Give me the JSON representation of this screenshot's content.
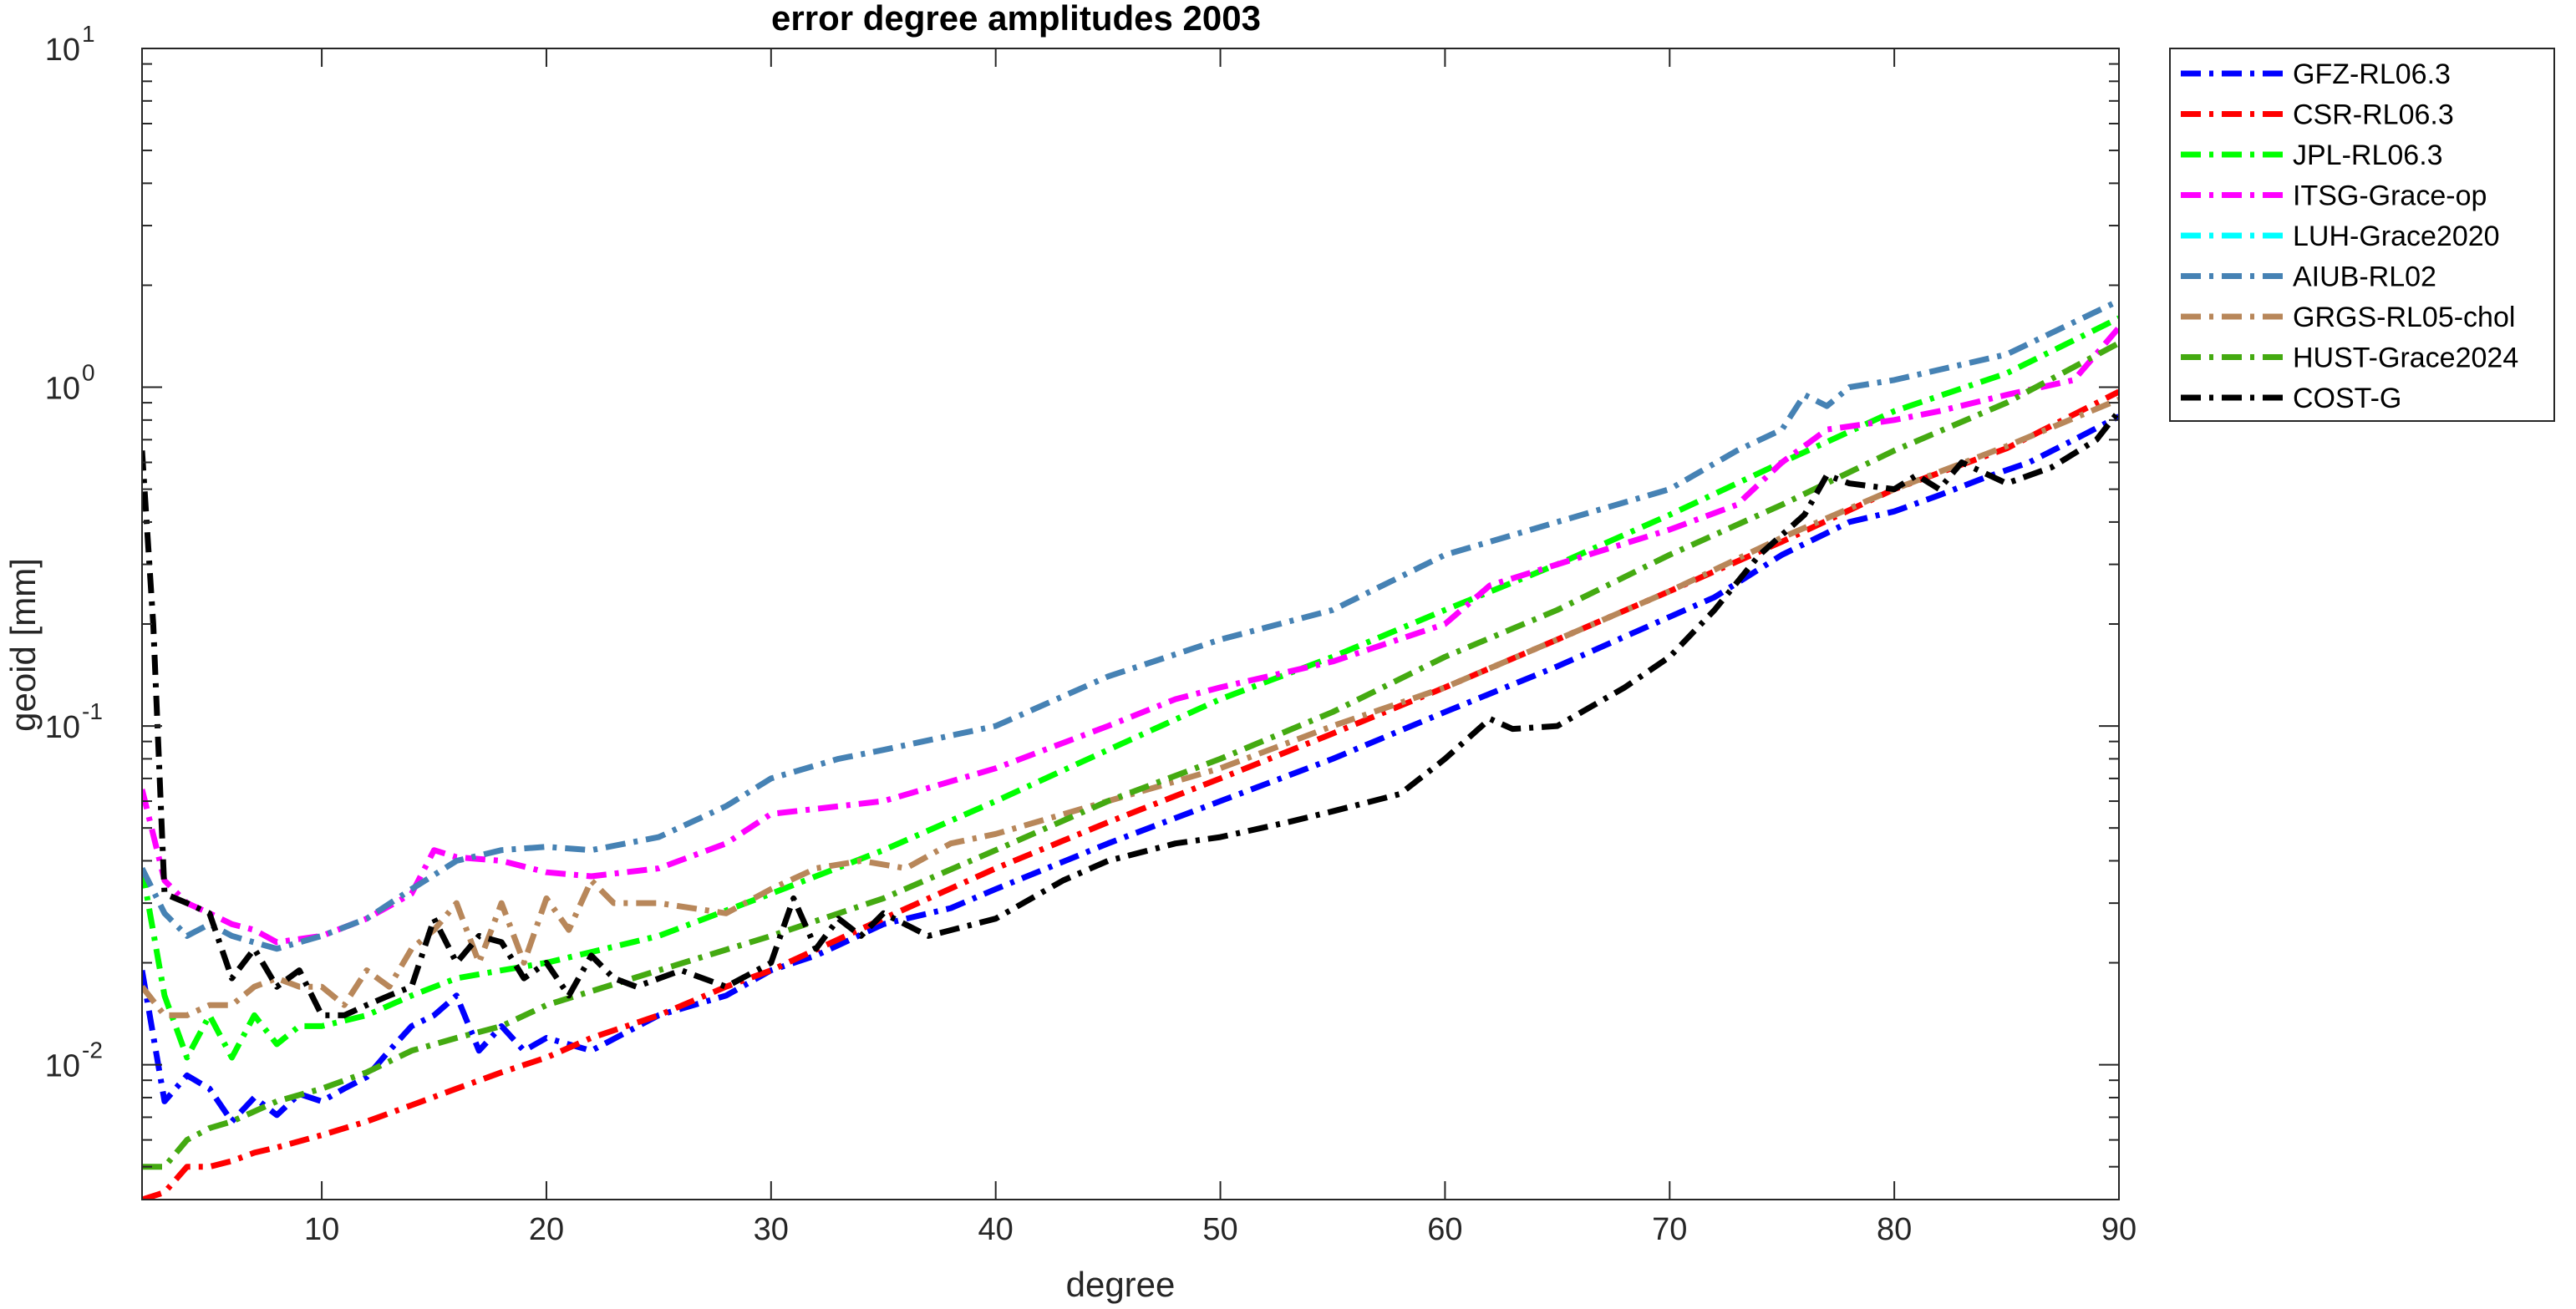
{
  "chart_data": {
    "type": "line",
    "title": "error degree amplitudes 2003",
    "xlabel": "degree",
    "ylabel": "geoid [mm]",
    "xlim": [
      2,
      90
    ],
    "ylim": [
      0.004,
      10
    ],
    "yscale": "log",
    "xticks": [
      10,
      20,
      30,
      40,
      50,
      60,
      70,
      80,
      90
    ],
    "yticks": [
      {
        "value": 10,
        "base": "10",
        "exp": "1"
      },
      {
        "value": 1,
        "base": "10",
        "exp": "0"
      },
      {
        "value": 0.1,
        "base": "10",
        "exp": "-1"
      },
      {
        "value": 0.01,
        "base": "10",
        "exp": "-2"
      }
    ],
    "grid": false,
    "legend_position": "outside-top-right",
    "series": [
      {
        "name": "GFZ-RL06.3",
        "color": "#0000ff",
        "points": [
          [
            2,
            0.019
          ],
          [
            3,
            0.0078
          ],
          [
            4,
            0.0093
          ],
          [
            5,
            0.0085
          ],
          [
            6,
            0.0068
          ],
          [
            7,
            0.008
          ],
          [
            8,
            0.0071
          ],
          [
            9,
            0.0082
          ],
          [
            10,
            0.0078
          ],
          [
            11,
            0.0085
          ],
          [
            12,
            0.0092
          ],
          [
            13,
            0.011
          ],
          [
            14,
            0.013
          ],
          [
            15,
            0.014
          ],
          [
            16,
            0.016
          ],
          [
            17,
            0.011
          ],
          [
            18,
            0.013
          ],
          [
            19,
            0.011
          ],
          [
            20,
            0.012
          ],
          [
            22,
            0.011
          ],
          [
            25,
            0.014
          ],
          [
            28,
            0.016
          ],
          [
            30,
            0.019
          ],
          [
            32,
            0.021
          ],
          [
            35,
            0.026
          ],
          [
            38,
            0.029
          ],
          [
            40,
            0.033
          ],
          [
            45,
            0.045
          ],
          [
            50,
            0.06
          ],
          [
            55,
            0.08
          ],
          [
            60,
            0.11
          ],
          [
            65,
            0.15
          ],
          [
            70,
            0.21
          ],
          [
            72,
            0.24
          ],
          [
            75,
            0.32
          ],
          [
            78,
            0.4
          ],
          [
            80,
            0.43
          ],
          [
            82,
            0.48
          ],
          [
            84,
            0.54
          ],
          [
            86,
            0.6
          ],
          [
            88,
            0.7
          ],
          [
            90,
            0.82
          ]
        ]
      },
      {
        "name": "CSR-RL06.3",
        "color": "#ff0000",
        "points": [
          [
            2,
            0.004
          ],
          [
            3,
            0.0042
          ],
          [
            4,
            0.005
          ],
          [
            5,
            0.005
          ],
          [
            6,
            0.0052
          ],
          [
            7,
            0.0055
          ],
          [
            8,
            0.0057
          ],
          [
            10,
            0.0062
          ],
          [
            12,
            0.0068
          ],
          [
            14,
            0.0076
          ],
          [
            16,
            0.0085
          ],
          [
            18,
            0.0095
          ],
          [
            20,
            0.0105
          ],
          [
            22,
            0.012
          ],
          [
            25,
            0.014
          ],
          [
            28,
            0.017
          ],
          [
            30,
            0.019
          ],
          [
            35,
            0.027
          ],
          [
            40,
            0.038
          ],
          [
            45,
            0.052
          ],
          [
            50,
            0.07
          ],
          [
            55,
            0.095
          ],
          [
            60,
            0.13
          ],
          [
            65,
            0.18
          ],
          [
            70,
            0.25
          ],
          [
            75,
            0.35
          ],
          [
            80,
            0.5
          ],
          [
            85,
            0.66
          ],
          [
            90,
            0.97
          ]
        ]
      },
      {
        "name": "JPL-RL06.3",
        "color": "#00ff00",
        "points": [
          [
            2,
            0.038
          ],
          [
            3,
            0.016
          ],
          [
            4,
            0.0105
          ],
          [
            5,
            0.014
          ],
          [
            6,
            0.0105
          ],
          [
            7,
            0.014
          ],
          [
            8,
            0.0115
          ],
          [
            9,
            0.013
          ],
          [
            10,
            0.013
          ],
          [
            12,
            0.014
          ],
          [
            14,
            0.016
          ],
          [
            16,
            0.018
          ],
          [
            18,
            0.019
          ],
          [
            20,
            0.02
          ],
          [
            25,
            0.024
          ],
          [
            30,
            0.032
          ],
          [
            35,
            0.043
          ],
          [
            40,
            0.06
          ],
          [
            45,
            0.085
          ],
          [
            50,
            0.12
          ],
          [
            55,
            0.16
          ],
          [
            60,
            0.22
          ],
          [
            65,
            0.3
          ],
          [
            70,
            0.42
          ],
          [
            75,
            0.6
          ],
          [
            80,
            0.85
          ],
          [
            85,
            1.1
          ],
          [
            90,
            1.6
          ]
        ]
      },
      {
        "name": "ITSG-Grace-op",
        "color": "#ff00ff",
        "points": [
          [
            2,
            0.065
          ],
          [
            3,
            0.035
          ],
          [
            4,
            0.03
          ],
          [
            5,
            0.028
          ],
          [
            6,
            0.026
          ],
          [
            7,
            0.025
          ],
          [
            8,
            0.023
          ],
          [
            10,
            0.024
          ],
          [
            12,
            0.027
          ],
          [
            14,
            0.032
          ],
          [
            15,
            0.043
          ],
          [
            16,
            0.041
          ],
          [
            18,
            0.04
          ],
          [
            20,
            0.037
          ],
          [
            22,
            0.036
          ],
          [
            25,
            0.038
          ],
          [
            28,
            0.045
          ],
          [
            30,
            0.055
          ],
          [
            35,
            0.06
          ],
          [
            40,
            0.075
          ],
          [
            45,
            0.1
          ],
          [
            48,
            0.12
          ],
          [
            50,
            0.13
          ],
          [
            55,
            0.155
          ],
          [
            60,
            0.2
          ],
          [
            62,
            0.26
          ],
          [
            65,
            0.3
          ],
          [
            70,
            0.38
          ],
          [
            73,
            0.45
          ],
          [
            75,
            0.6
          ],
          [
            77,
            0.75
          ],
          [
            80,
            0.8
          ],
          [
            82,
            0.85
          ],
          [
            85,
            0.95
          ],
          [
            88,
            1.05
          ],
          [
            90,
            1.5
          ]
        ]
      },
      {
        "name": "LUH-Grace2020",
        "color": "#00ffff",
        "points": []
      },
      {
        "name": "AIUB-RL02",
        "color": "#4682b4",
        "points": [
          [
            2,
            0.038
          ],
          [
            3,
            0.028
          ],
          [
            4,
            0.024
          ],
          [
            5,
            0.026
          ],
          [
            6,
            0.024
          ],
          [
            8,
            0.022
          ],
          [
            10,
            0.024
          ],
          [
            12,
            0.027
          ],
          [
            14,
            0.033
          ],
          [
            16,
            0.04
          ],
          [
            18,
            0.043
          ],
          [
            20,
            0.044
          ],
          [
            22,
            0.043
          ],
          [
            25,
            0.047
          ],
          [
            28,
            0.058
          ],
          [
            30,
            0.07
          ],
          [
            33,
            0.08
          ],
          [
            35,
            0.085
          ],
          [
            40,
            0.1
          ],
          [
            45,
            0.14
          ],
          [
            50,
            0.18
          ],
          [
            55,
            0.22
          ],
          [
            60,
            0.32
          ],
          [
            65,
            0.4
          ],
          [
            70,
            0.5
          ],
          [
            73,
            0.65
          ],
          [
            75,
            0.75
          ],
          [
            76,
            0.95
          ],
          [
            77,
            0.88
          ],
          [
            78,
            1.0
          ],
          [
            80,
            1.05
          ],
          [
            85,
            1.25
          ],
          [
            90,
            1.8
          ]
        ]
      },
      {
        "name": "GRGS-RL05-chol",
        "color": "#b8875a",
        "points": [
          [
            2,
            0.017
          ],
          [
            3,
            0.014
          ],
          [
            4,
            0.014
          ],
          [
            5,
            0.015
          ],
          [
            6,
            0.015
          ],
          [
            7,
            0.017
          ],
          [
            8,
            0.018
          ],
          [
            9,
            0.017
          ],
          [
            10,
            0.017
          ],
          [
            11,
            0.015
          ],
          [
            12,
            0.019
          ],
          [
            13,
            0.017
          ],
          [
            14,
            0.022
          ],
          [
            15,
            0.025
          ],
          [
            16,
            0.03
          ],
          [
            17,
            0.02
          ],
          [
            18,
            0.03
          ],
          [
            19,
            0.02
          ],
          [
            20,
            0.031
          ],
          [
            21,
            0.025
          ],
          [
            22,
            0.035
          ],
          [
            23,
            0.03
          ],
          [
            25,
            0.03
          ],
          [
            28,
            0.028
          ],
          [
            30,
            0.033
          ],
          [
            32,
            0.038
          ],
          [
            34,
            0.04
          ],
          [
            36,
            0.038
          ],
          [
            38,
            0.045
          ],
          [
            40,
            0.048
          ],
          [
            45,
            0.06
          ],
          [
            50,
            0.075
          ],
          [
            55,
            0.1
          ],
          [
            60,
            0.13
          ],
          [
            65,
            0.18
          ],
          [
            70,
            0.25
          ],
          [
            75,
            0.36
          ],
          [
            80,
            0.5
          ],
          [
            85,
            0.67
          ],
          [
            90,
            0.92
          ]
        ]
      },
      {
        "name": "HUST-Grace2024",
        "color": "#44aa11",
        "points": [
          [
            2,
            0.005
          ],
          [
            3,
            0.005
          ],
          [
            4,
            0.006
          ],
          [
            5,
            0.0065
          ],
          [
            6,
            0.0068
          ],
          [
            8,
            0.0078
          ],
          [
            10,
            0.0085
          ],
          [
            12,
            0.0095
          ],
          [
            14,
            0.011
          ],
          [
            16,
            0.012
          ],
          [
            18,
            0.013
          ],
          [
            20,
            0.015
          ],
          [
            25,
            0.019
          ],
          [
            30,
            0.024
          ],
          [
            35,
            0.031
          ],
          [
            40,
            0.043
          ],
          [
            45,
            0.06
          ],
          [
            50,
            0.08
          ],
          [
            55,
            0.11
          ],
          [
            60,
            0.16
          ],
          [
            65,
            0.22
          ],
          [
            70,
            0.32
          ],
          [
            75,
            0.45
          ],
          [
            80,
            0.65
          ],
          [
            85,
            0.9
          ],
          [
            90,
            1.35
          ]
        ]
      },
      {
        "name": "COST-G",
        "color": "#000000",
        "points": [
          [
            2,
            0.65
          ],
          [
            2.5,
            0.2
          ],
          [
            3,
            0.032
          ],
          [
            4,
            0.03
          ],
          [
            5,
            0.028
          ],
          [
            6,
            0.018
          ],
          [
            7,
            0.022
          ],
          [
            8,
            0.017
          ],
          [
            9,
            0.019
          ],
          [
            10,
            0.014
          ],
          [
            11,
            0.014
          ],
          [
            12,
            0.015
          ],
          [
            13,
            0.016
          ],
          [
            14,
            0.017
          ],
          [
            15,
            0.027
          ],
          [
            16,
            0.02
          ],
          [
            17,
            0.024
          ],
          [
            18,
            0.023
          ],
          [
            19,
            0.018
          ],
          [
            20,
            0.02
          ],
          [
            21,
            0.016
          ],
          [
            22,
            0.021
          ],
          [
            23,
            0.018
          ],
          [
            24,
            0.017
          ],
          [
            26,
            0.019
          ],
          [
            28,
            0.017
          ],
          [
            30,
            0.02
          ],
          [
            31,
            0.031
          ],
          [
            32,
            0.022
          ],
          [
            33,
            0.027
          ],
          [
            34,
            0.024
          ],
          [
            35,
            0.028
          ],
          [
            37,
            0.024
          ],
          [
            40,
            0.027
          ],
          [
            43,
            0.035
          ],
          [
            45,
            0.04
          ],
          [
            48,
            0.045
          ],
          [
            50,
            0.047
          ],
          [
            53,
            0.052
          ],
          [
            55,
            0.056
          ],
          [
            58,
            0.063
          ],
          [
            60,
            0.08
          ],
          [
            62,
            0.105
          ],
          [
            63,
            0.098
          ],
          [
            65,
            0.1
          ],
          [
            68,
            0.13
          ],
          [
            70,
            0.16
          ],
          [
            72,
            0.22
          ],
          [
            74,
            0.32
          ],
          [
            76,
            0.42
          ],
          [
            77,
            0.55
          ],
          [
            78,
            0.52
          ],
          [
            80,
            0.5
          ],
          [
            81,
            0.55
          ],
          [
            82,
            0.5
          ],
          [
            83,
            0.6
          ],
          [
            85,
            0.52
          ],
          [
            87,
            0.58
          ],
          [
            89,
            0.7
          ],
          [
            90,
            0.85
          ]
        ]
      }
    ]
  }
}
